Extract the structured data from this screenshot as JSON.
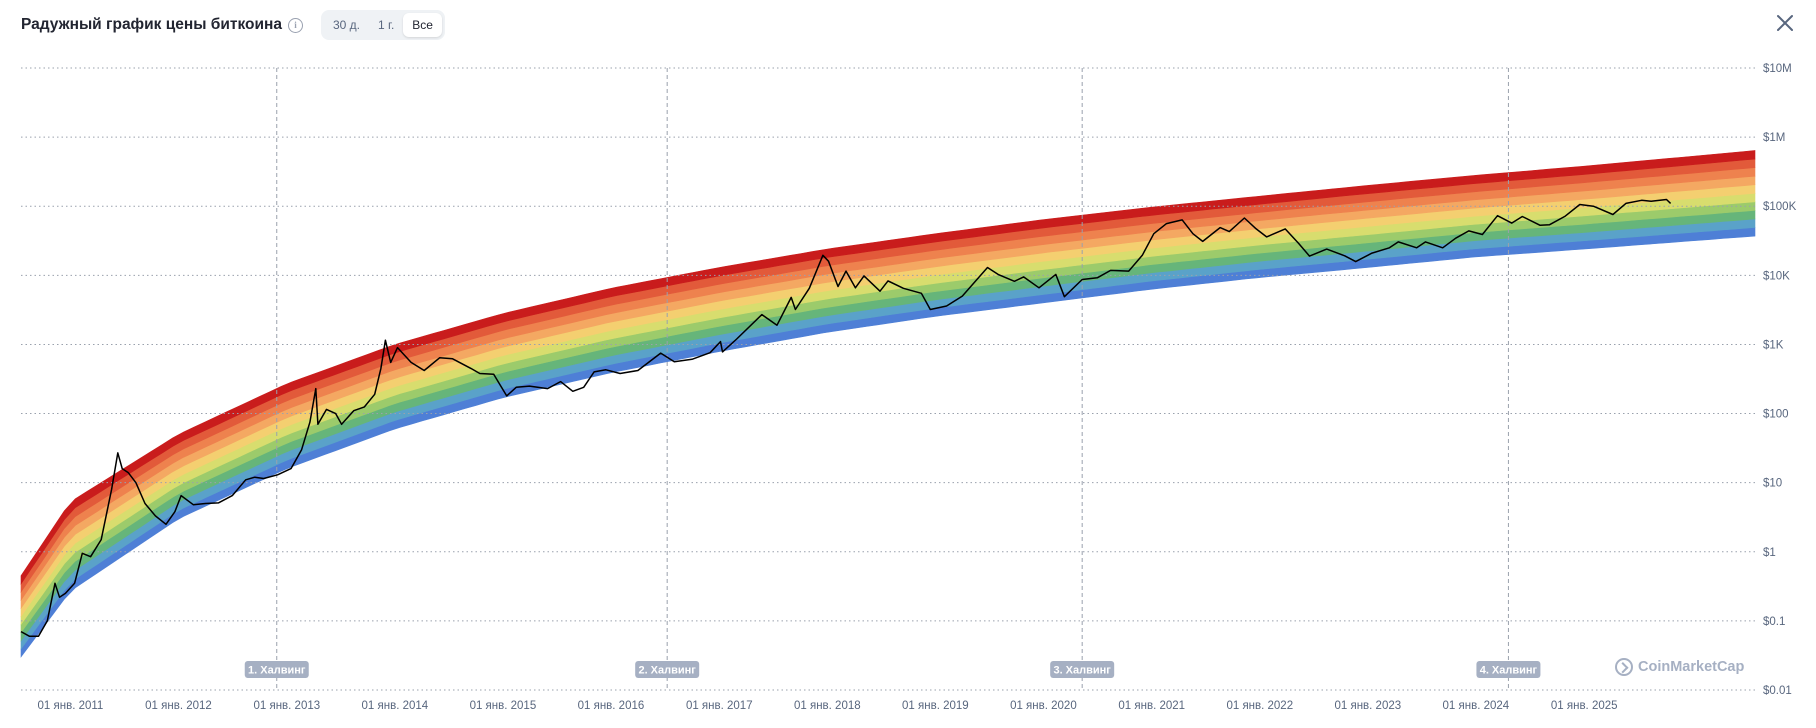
{
  "header": {
    "title": "Радужный график цены биткоина",
    "info_icon": "info-icon",
    "timeframes": [
      {
        "label": "30 д.",
        "active": false
      },
      {
        "label": "1 г.",
        "active": false
      },
      {
        "label": "Все",
        "active": true
      }
    ],
    "close_icon": "close-icon"
  },
  "watermark": "CoinMarketCap",
  "chart_data": {
    "type": "area",
    "title": "Радужный график цены биткоина",
    "y_scale": "log",
    "ylim": [
      0.01,
      10000000
    ],
    "xlim": [
      "2010-07-18",
      "2026-08-01"
    ],
    "y_ticks": [
      {
        "value": 10000000,
        "label": "$10M"
      },
      {
        "value": 1000000,
        "label": "$1M"
      },
      {
        "value": 100000,
        "label": "$100K"
      },
      {
        "value": 10000,
        "label": "$10K"
      },
      {
        "value": 1000,
        "label": "$1K"
      },
      {
        "value": 100,
        "label": "$100"
      },
      {
        "value": 10,
        "label": "$10"
      },
      {
        "value": 1,
        "label": "$1"
      },
      {
        "value": 0.1,
        "label": "$0.1"
      },
      {
        "value": 0.01,
        "label": "$0.01"
      }
    ],
    "x_ticks": [
      {
        "date": "2011-01-01",
        "label": "01 янв. 2011"
      },
      {
        "date": "2012-01-01",
        "label": "01 янв. 2012"
      },
      {
        "date": "2013-01-01",
        "label": "01 янв. 2013"
      },
      {
        "date": "2014-01-01",
        "label": "01 янв. 2014"
      },
      {
        "date": "2015-01-01",
        "label": "01 янв. 2015"
      },
      {
        "date": "2016-01-01",
        "label": "01 янв. 2016"
      },
      {
        "date": "2017-01-01",
        "label": "01 янв. 2017"
      },
      {
        "date": "2018-01-01",
        "label": "01 янв. 2018"
      },
      {
        "date": "2019-01-01",
        "label": "01 янв. 2019"
      },
      {
        "date": "2020-01-01",
        "label": "01 янв. 2020"
      },
      {
        "date": "2021-01-01",
        "label": "01 янв. 2021"
      },
      {
        "date": "2022-01-01",
        "label": "01 янв. 2022"
      },
      {
        "date": "2023-01-01",
        "label": "01 янв. 2023"
      },
      {
        "date": "2024-01-01",
        "label": "01 янв. 2024"
      },
      {
        "date": "2025-01-01",
        "label": "01 янв. 2025"
      }
    ],
    "halvings": [
      {
        "date": "2012-11-28",
        "label": "1. Халвинг"
      },
      {
        "date": "2016-07-09",
        "label": "2. Халвинг"
      },
      {
        "date": "2020-05-11",
        "label": "3. Халвинг"
      },
      {
        "date": "2024-04-20",
        "label": "4. Халвинг"
      }
    ],
    "rainbow": {
      "colors": [
        "#4e7fd6",
        "#5aa2c9",
        "#66b57a",
        "#9ccb6b",
        "#d8dd6e",
        "#f4cf70",
        "#f4a862",
        "#ee824e",
        "#e25a3a",
        "#c91c1c"
      ],
      "lower_anchors": [
        {
          "date": "2010-07-18",
          "value": 0.03
        },
        {
          "date": "2011-01-01",
          "value": 0.27
        },
        {
          "date": "2012-01-01",
          "value": 3
        },
        {
          "date": "2013-01-01",
          "value": 16
        },
        {
          "date": "2014-01-01",
          "value": 60
        },
        {
          "date": "2015-01-01",
          "value": 170
        },
        {
          "date": "2016-01-01",
          "value": 390
        },
        {
          "date": "2017-01-01",
          "value": 790
        },
        {
          "date": "2018-01-01",
          "value": 1500
        },
        {
          "date": "2019-01-01",
          "value": 2550
        },
        {
          "date": "2020-01-01",
          "value": 4000
        },
        {
          "date": "2021-01-01",
          "value": 6300
        },
        {
          "date": "2022-01-01",
          "value": 9300
        },
        {
          "date": "2023-01-01",
          "value": 13000
        },
        {
          "date": "2024-01-01",
          "value": 18500
        },
        {
          "date": "2025-01-01",
          "value": 24000
        },
        {
          "date": "2026-08-01",
          "value": 37000
        }
      ],
      "upper_anchors": [
        {
          "date": "2010-07-18",
          "value": 0.45
        },
        {
          "date": "2011-01-01",
          "value": 5.3
        },
        {
          "date": "2012-01-01",
          "value": 50
        },
        {
          "date": "2013-01-01",
          "value": 270
        },
        {
          "date": "2014-01-01",
          "value": 1000
        },
        {
          "date": "2015-01-01",
          "value": 2800
        },
        {
          "date": "2016-01-01",
          "value": 6500
        },
        {
          "date": "2017-01-01",
          "value": 13000
        },
        {
          "date": "2018-01-01",
          "value": 24000
        },
        {
          "date": "2019-01-01",
          "value": 40000
        },
        {
          "date": "2020-01-01",
          "value": 64000
        },
        {
          "date": "2021-01-01",
          "value": 97000
        },
        {
          "date": "2022-01-01",
          "value": 140000
        },
        {
          "date": "2023-01-01",
          "value": 200000
        },
        {
          "date": "2024-01-01",
          "value": 280000
        },
        {
          "date": "2025-01-01",
          "value": 380000
        },
        {
          "date": "2026-08-01",
          "value": 640000
        }
      ]
    },
    "series": [
      {
        "color": "#000000",
        "points": [
          [
            "2010-07-18",
            0.07
          ],
          [
            "2010-08-15",
            0.06
          ],
          [
            "2010-09-15",
            0.06
          ],
          [
            "2010-10-15",
            0.1
          ],
          [
            "2010-11-10",
            0.35
          ],
          [
            "2010-11-25",
            0.22
          ],
          [
            "2010-12-15",
            0.25
          ],
          [
            "2011-01-15",
            0.35
          ],
          [
            "2011-02-10",
            0.95
          ],
          [
            "2011-03-10",
            0.85
          ],
          [
            "2011-04-15",
            1.5
          ],
          [
            "2011-05-20",
            8
          ],
          [
            "2011-06-10",
            27
          ],
          [
            "2011-06-25",
            16
          ],
          [
            "2011-07-15",
            14
          ],
          [
            "2011-08-10",
            10
          ],
          [
            "2011-09-10",
            5
          ],
          [
            "2011-10-15",
            3.3
          ],
          [
            "2011-11-20",
            2.5
          ],
          [
            "2011-12-20",
            3.8
          ],
          [
            "2012-01-10",
            6.5
          ],
          [
            "2012-02-20",
            4.8
          ],
          [
            "2012-04-01",
            5
          ],
          [
            "2012-05-15",
            5.1
          ],
          [
            "2012-07-01",
            6.5
          ],
          [
            "2012-08-15",
            11
          ],
          [
            "2012-09-15",
            12
          ],
          [
            "2012-10-15",
            11.5
          ],
          [
            "2012-12-01",
            13
          ],
          [
            "2013-01-15",
            16
          ],
          [
            "2013-02-20",
            30
          ],
          [
            "2013-03-20",
            75
          ],
          [
            "2013-04-09",
            230
          ],
          [
            "2013-04-16",
            70
          ],
          [
            "2013-05-15",
            115
          ],
          [
            "2013-06-15",
            100
          ],
          [
            "2013-07-05",
            70
          ],
          [
            "2013-08-15",
            110
          ],
          [
            "2013-09-20",
            125
          ],
          [
            "2013-10-25",
            190
          ],
          [
            "2013-11-15",
            450
          ],
          [
            "2013-11-30",
            1150
          ],
          [
            "2013-12-18",
            550
          ],
          [
            "2014-01-10",
            900
          ],
          [
            "2014-02-25",
            550
          ],
          [
            "2014-04-10",
            420
          ],
          [
            "2014-06-01",
            640
          ],
          [
            "2014-07-15",
            620
          ],
          [
            "2014-09-15",
            450
          ],
          [
            "2014-10-15",
            380
          ],
          [
            "2014-12-01",
            370
          ],
          [
            "2015-01-14",
            180
          ],
          [
            "2015-02-15",
            240
          ],
          [
            "2015-04-01",
            250
          ],
          [
            "2015-06-01",
            230
          ],
          [
            "2015-07-15",
            290
          ],
          [
            "2015-08-25",
            210
          ],
          [
            "2015-10-01",
            240
          ],
          [
            "2015-11-05",
            400
          ],
          [
            "2015-12-15",
            430
          ],
          [
            "2016-02-01",
            380
          ],
          [
            "2016-04-01",
            420
          ],
          [
            "2016-06-17",
            750
          ],
          [
            "2016-08-02",
            560
          ],
          [
            "2016-10-01",
            610
          ],
          [
            "2016-12-01",
            760
          ],
          [
            "2017-01-05",
            1100
          ],
          [
            "2017-01-12",
            780
          ],
          [
            "2017-03-01",
            1200
          ],
          [
            "2017-05-25",
            2700
          ],
          [
            "2017-07-15",
            1900
          ],
          [
            "2017-09-01",
            4800
          ],
          [
            "2017-09-15",
            3200
          ],
          [
            "2017-11-01",
            6500
          ],
          [
            "2017-12-17",
            19500
          ],
          [
            "2018-01-05",
            16000
          ],
          [
            "2018-02-06",
            6900
          ],
          [
            "2018-03-05",
            11500
          ],
          [
            "2018-04-06",
            6600
          ],
          [
            "2018-05-05",
            9800
          ],
          [
            "2018-06-28",
            5900
          ],
          [
            "2018-07-25",
            8300
          ],
          [
            "2018-09-15",
            6500
          ],
          [
            "2018-11-15",
            5500
          ],
          [
            "2018-12-15",
            3200
          ],
          [
            "2019-02-08",
            3600
          ],
          [
            "2019-04-02",
            5000
          ],
          [
            "2019-06-26",
            13000
          ],
          [
            "2019-08-01",
            10300
          ],
          [
            "2019-09-25",
            8200
          ],
          [
            "2019-10-26",
            9500
          ],
          [
            "2019-12-17",
            6600
          ],
          [
            "2020-02-12",
            10300
          ],
          [
            "2020-03-12",
            4900
          ],
          [
            "2020-05-11",
            8700
          ],
          [
            "2020-07-01",
            9200
          ],
          [
            "2020-08-15",
            11800
          ],
          [
            "2020-10-15",
            11500
          ],
          [
            "2020-11-30",
            19500
          ],
          [
            "2021-01-08",
            40000
          ],
          [
            "2021-02-20",
            56000
          ],
          [
            "2021-04-14",
            63500
          ],
          [
            "2021-05-20",
            40000
          ],
          [
            "2021-06-22",
            31000
          ],
          [
            "2021-08-20",
            49000
          ],
          [
            "2021-09-20",
            43000
          ],
          [
            "2021-11-10",
            67500
          ],
          [
            "2021-12-20",
            47000
          ],
          [
            "2022-01-24",
            36000
          ],
          [
            "2022-03-28",
            47000
          ],
          [
            "2022-05-12",
            29000
          ],
          [
            "2022-06-18",
            19000
          ],
          [
            "2022-08-15",
            24000
          ],
          [
            "2022-10-15",
            19200
          ],
          [
            "2022-11-21",
            15800
          ],
          [
            "2023-01-15",
            21000
          ],
          [
            "2023-03-15",
            25000
          ],
          [
            "2023-04-14",
            30500
          ],
          [
            "2023-06-15",
            25000
          ],
          [
            "2023-07-15",
            30500
          ],
          [
            "2023-09-11",
            25000
          ],
          [
            "2023-10-25",
            34500
          ],
          [
            "2023-12-08",
            44000
          ],
          [
            "2024-01-23",
            39000
          ],
          [
            "2024-03-14",
            73000
          ],
          [
            "2024-05-01",
            57000
          ],
          [
            "2024-06-06",
            71000
          ],
          [
            "2024-08-05",
            53000
          ],
          [
            "2024-09-06",
            54000
          ],
          [
            "2024-10-29",
            72000
          ],
          [
            "2024-12-17",
            106000
          ],
          [
            "2025-02-01",
            100000
          ],
          [
            "2025-04-08",
            76000
          ],
          [
            "2025-05-22",
            110000
          ],
          [
            "2025-07-14",
            122000
          ],
          [
            "2025-08-15",
            118000
          ],
          [
            "2025-10-06",
            125000
          ],
          [
            "2025-10-20",
            110000
          ]
        ]
      }
    ],
    "grid": true
  }
}
